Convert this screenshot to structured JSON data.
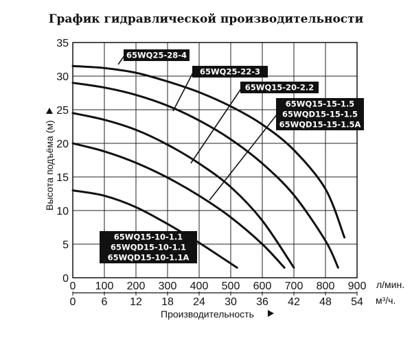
{
  "chart_data": {
    "type": "line",
    "title": "График гидравлической производительности",
    "xlabel": "Производительность",
    "ylabel": "Высота подъёма (м)",
    "x_unit_primary": "л/мин.",
    "x_unit_secondary": "м³/ч.",
    "xlim": [
      0,
      900
    ],
    "ylim": [
      0,
      35
    ],
    "x_ticks": [
      0,
      100,
      200,
      300,
      400,
      500,
      600,
      700,
      800,
      900
    ],
    "x2_ticks": [
      0,
      6,
      12,
      18,
      24,
      30,
      36,
      42,
      48,
      54
    ],
    "y_ticks": [
      0,
      5,
      10,
      15,
      20,
      25,
      30,
      35
    ],
    "grid": true,
    "series": [
      {
        "name": "65WQ15-10-1.1 / 65WQD15-10-1.1 / 65WQD15-10-1.1A",
        "x": [
          0,
          100,
          200,
          300,
          400,
          520
        ],
        "y": [
          13,
          12.2,
          10.5,
          8,
          5.2,
          1.5
        ]
      },
      {
        "name": "65WQ15-15-1.5 / 65WQD15-15-1.5 / 65WQD15-15-1.5A",
        "x": [
          0,
          100,
          200,
          300,
          400,
          500,
          600,
          670
        ],
        "y": [
          20,
          18.8,
          17.1,
          14.9,
          12.2,
          9,
          5,
          1.5
        ]
      },
      {
        "name": "65WQ15-20-2.2",
        "x": [
          0,
          100,
          200,
          300,
          400,
          500,
          600,
          700
        ],
        "y": [
          24.5,
          23.5,
          22,
          19.8,
          17,
          13.5,
          8.5,
          1.5
        ]
      },
      {
        "name": "65WQ25-22-3",
        "x": [
          0,
          100,
          200,
          300,
          400,
          500,
          600,
          700,
          800,
          840
        ],
        "y": [
          29,
          28.3,
          27.2,
          25.6,
          23.4,
          20.6,
          17,
          12.3,
          5.5,
          1.5
        ]
      },
      {
        "name": "65WQ25-28-4",
        "x": [
          0,
          100,
          200,
          300,
          400,
          500,
          600,
          700,
          800,
          860
        ],
        "y": [
          31.5,
          31.2,
          30.5,
          29.2,
          27.6,
          25.5,
          22.8,
          19,
          13.2,
          6
        ]
      }
    ],
    "labels": [
      {
        "series": 4,
        "lines": [
          "65WQ25-28-4"
        ]
      },
      {
        "series": 3,
        "lines": [
          "65WQ25-22-3"
        ]
      },
      {
        "series": 2,
        "lines": [
          "65WQ15-20-2.2"
        ]
      },
      {
        "series": 1,
        "lines": [
          "65WQ15-15-1.5",
          "65WQD15-15-1.5",
          "65WQD15-15-1.5A"
        ]
      },
      {
        "series": 0,
        "lines": [
          "65WQ15-10-1.1",
          "65WQD15-10-1.1",
          "65WQD15-10-1.1A"
        ]
      }
    ]
  }
}
